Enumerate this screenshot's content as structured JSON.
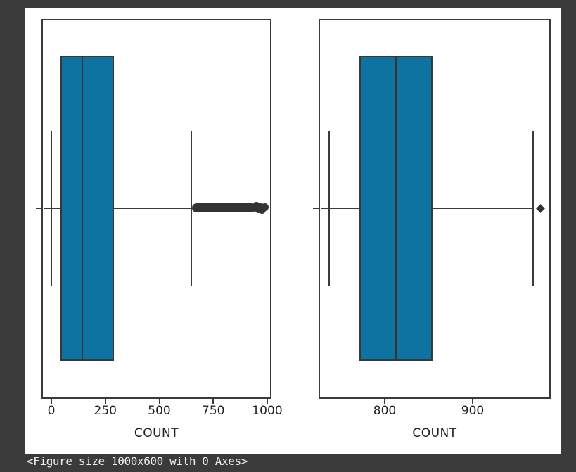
{
  "caption": {
    "text": "<Figure size 1000x600 with 0 Axes>"
  },
  "colors": {
    "background": "#3b3b3b",
    "figure_background": "#ffffff",
    "box_fill": "#0e73a1",
    "line": "#3a3a3a",
    "caption_text": "#eeeeee",
    "tick_text": "#1f1f1f"
  },
  "chart_data": [
    {
      "type": "box",
      "orientation": "horizontal",
      "title": "",
      "xlabel": "COUNT",
      "ylabel": "",
      "xticks": [
        0,
        250,
        500,
        750,
        1000
      ],
      "xlim": [
        -46,
        1020
      ],
      "grid": false,
      "stats": {
        "whisker_low": 0,
        "q1": 42,
        "median": 143,
        "q3": 290,
        "whisker_high": 648
      },
      "outliers": {
        "style": "dense-band",
        "range": [
          652,
          992
        ],
        "note": "many overlapping outlier points forming a solid band",
        "dot_values": [
          948,
          958,
          967,
          975,
          983,
          990
        ]
      }
    },
    {
      "type": "box",
      "orientation": "horizontal",
      "title": "",
      "xlabel": "COUNT",
      "ylabel": "",
      "xticks": [
        800,
        900
      ],
      "xlim": [
        725,
        989
      ],
      "grid": false,
      "stats": {
        "whisker_low": 737,
        "q1": 771,
        "median": 813,
        "q3": 854,
        "whisker_high": 969
      },
      "outliers": {
        "style": "diamond",
        "values": [
          977
        ]
      }
    }
  ]
}
